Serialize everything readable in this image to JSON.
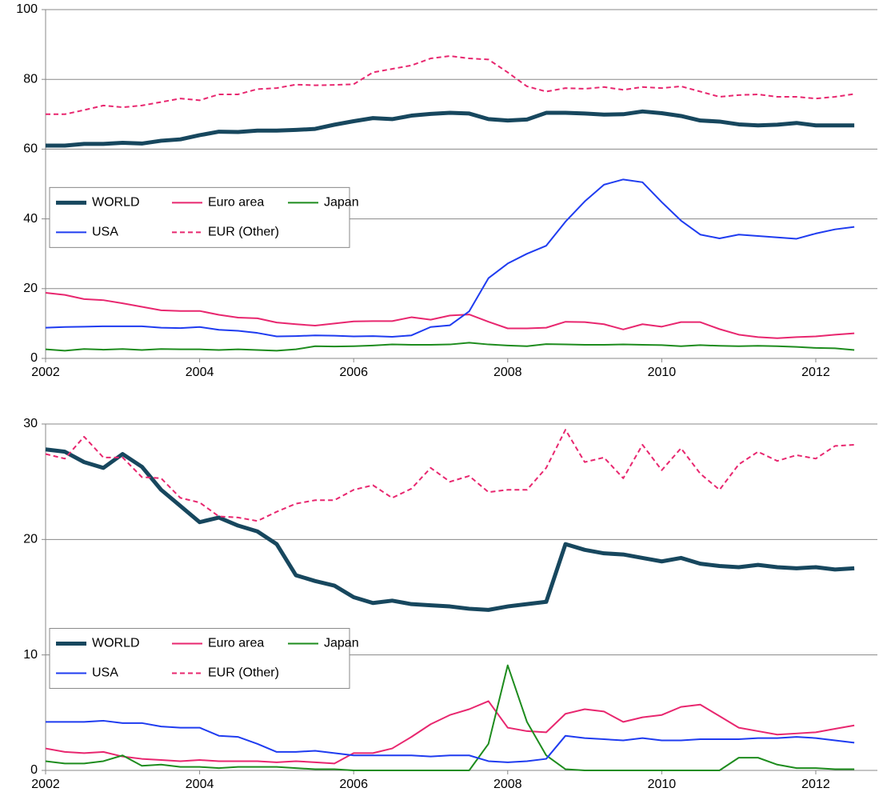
{
  "chart_data": [
    {
      "type": "line",
      "x": [
        2002,
        2002.25,
        2002.5,
        2002.75,
        2003,
        2003.25,
        2003.5,
        2003.75,
        2004,
        2004.25,
        2004.5,
        2004.75,
        2005,
        2005.25,
        2005.5,
        2005.75,
        2006,
        2006.25,
        2006.5,
        2006.75,
        2007,
        2007.25,
        2007.5,
        2007.75,
        2008,
        2008.25,
        2008.5,
        2008.75,
        2009,
        2009.25,
        2009.5,
        2009.75,
        2010,
        2010.25,
        2010.5,
        2010.75,
        2011,
        2011.25,
        2011.5,
        2011.75,
        2012,
        2012.25,
        2012.5
      ],
      "xlim": [
        2002,
        2012.8
      ],
      "xticks": [
        2002,
        2004,
        2006,
        2008,
        2010,
        2012
      ],
      "ylim": [
        0,
        100
      ],
      "yticks": [
        0,
        20,
        40,
        60,
        80,
        100
      ],
      "grid": true,
      "legend": "center-left",
      "series": [
        {
          "name": "WORLD",
          "color": "#17475e",
          "line_width": 5,
          "values": [
            61,
            61,
            61.5,
            61.5,
            61.8,
            61.6,
            62.4,
            62.8,
            64,
            65,
            64.9,
            65.3,
            65.3,
            65.5,
            65.8,
            67,
            68,
            68.9,
            68.6,
            69.6,
            70.1,
            70.4,
            70.2,
            68.6,
            68.2,
            68.5,
            70.4,
            70.4,
            70.2,
            69.9,
            70.0,
            70.8,
            70.3,
            69.5,
            68.2,
            67.9,
            67.1,
            66.8,
            67,
            67.5,
            66.8,
            66.8,
            66.8
          ]
        },
        {
          "name": "Euro area",
          "color": "#e8276f",
          "line_width": 2,
          "values": [
            18.8,
            18.2,
            17,
            16.7,
            15.8,
            14.8,
            13.8,
            13.6,
            13.6,
            12.5,
            11.7,
            11.5,
            10.3,
            9.8,
            9.4,
            10,
            10.6,
            10.7,
            10.7,
            11.8,
            11.1,
            12.3,
            12.6,
            10.5,
            8.6,
            8.6,
            8.8,
            10.5,
            10.4,
            9.8,
            8.3,
            9.8,
            9.1,
            10.4,
            10.4,
            8.4,
            6.8,
            6.1,
            5.8,
            6.1,
            6.3,
            6.8,
            7.2
          ]
        },
        {
          "name": "Japan",
          "color": "#1e8c1e",
          "line_width": 2,
          "values": [
            2.6,
            2.2,
            2.7,
            2.5,
            2.7,
            2.4,
            2.7,
            2.6,
            2.6,
            2.4,
            2.6,
            2.4,
            2.2,
            2.6,
            3.5,
            3.4,
            3.5,
            3.7,
            4,
            3.9,
            3.9,
            4,
            4.5,
            4,
            3.7,
            3.5,
            4.1,
            4,
            3.9,
            3.9,
            4,
            3.9,
            3.8,
            3.5,
            3.8,
            3.6,
            3.5,
            3.6,
            3.5,
            3.3,
            3,
            2.9,
            2.4
          ]
        },
        {
          "name": "USA",
          "color": "#1f3cf0",
          "line_width": 2,
          "values": [
            8.8,
            9,
            9.1,
            9.2,
            9.2,
            9.2,
            8.8,
            8.7,
            9,
            8.2,
            7.9,
            7.3,
            6.3,
            6.4,
            6.6,
            6.5,
            6.3,
            6.4,
            6.2,
            6.6,
            9,
            9.5,
            13.5,
            23,
            27.2,
            30,
            32.3,
            39.2,
            45,
            49.8,
            51.3,
            50.5,
            44.8,
            39.5,
            35.5,
            34.4,
            35.5,
            35.1,
            34.7,
            34.3,
            35.8,
            37,
            37.7
          ]
        },
        {
          "name": "EUR (Other)",
          "color": "#e8276f",
          "line_width": 2,
          "dashed": true,
          "values": [
            70,
            70,
            71.2,
            72.5,
            72,
            72.5,
            73.5,
            74.5,
            74,
            75.7,
            75.7,
            77.2,
            77.5,
            78.5,
            78.3,
            78.4,
            78.6,
            82,
            83,
            84,
            86,
            86.7,
            86,
            85.7,
            82,
            78,
            76.5,
            77.5,
            77.3,
            77.8,
            77,
            77.8,
            77.5,
            78,
            76.5,
            75,
            75.5,
            75.7,
            75,
            75,
            74.5,
            75,
            75.8
          ]
        }
      ]
    },
    {
      "type": "line",
      "x": [
        2002,
        2002.25,
        2002.5,
        2002.75,
        2003,
        2003.25,
        2003.5,
        2003.75,
        2004,
        2004.25,
        2004.5,
        2004.75,
        2005,
        2005.25,
        2005.5,
        2005.75,
        2006,
        2006.25,
        2006.5,
        2006.75,
        2007,
        2007.25,
        2007.5,
        2007.75,
        2008,
        2008.25,
        2008.5,
        2008.75,
        2009,
        2009.25,
        2009.5,
        2009.75,
        2010,
        2010.25,
        2010.5,
        2010.75,
        2011,
        2011.25,
        2011.5,
        2011.75,
        2012,
        2012.25,
        2012.5
      ],
      "xlim": [
        2002,
        2012.8
      ],
      "xticks": [
        2002,
        2004,
        2006,
        2008,
        2010,
        2012
      ],
      "ylim": [
        0,
        30
      ],
      "yticks": [
        0,
        10,
        20,
        30
      ],
      "grid": true,
      "legend": "lower-left",
      "series": [
        {
          "name": "WORLD",
          "color": "#17475e",
          "line_width": 5,
          "values": [
            27.8,
            27.6,
            26.7,
            26.2,
            27.4,
            26.3,
            24.3,
            22.9,
            21.5,
            21.9,
            21.2,
            20.7,
            19.6,
            16.9,
            16.4,
            16,
            15,
            14.5,
            14.7,
            14.4,
            14.3,
            14.2,
            14,
            13.9,
            14.2,
            14.4,
            14.6,
            19.6,
            19.1,
            18.8,
            18.7,
            18.4,
            18.1,
            18.4,
            17.9,
            17.7,
            17.6,
            17.8,
            17.6,
            17.5,
            17.6,
            17.4,
            17.5
          ]
        },
        {
          "name": "Euro area",
          "color": "#e8276f",
          "line_width": 2,
          "values": [
            1.9,
            1.6,
            1.5,
            1.6,
            1.2,
            1,
            0.9,
            0.8,
            0.9,
            0.8,
            0.8,
            0.8,
            0.7,
            0.8,
            0.7,
            0.6,
            1.5,
            1.5,
            1.9,
            2.9,
            4,
            4.8,
            5.3,
            6,
            3.7,
            3.4,
            3.3,
            4.9,
            5.3,
            5.1,
            4.2,
            4.6,
            4.8,
            5.5,
            5.7,
            4.7,
            3.7,
            3.4,
            3.1,
            3.2,
            3.3,
            3.6,
            3.9
          ]
        },
        {
          "name": "Japan",
          "color": "#1e8c1e",
          "line_width": 2,
          "values": [
            0.8,
            0.6,
            0.6,
            0.8,
            1.3,
            0.4,
            0.5,
            0.3,
            0.3,
            0.2,
            0.3,
            0.3,
            0.3,
            0.2,
            0.1,
            0.1,
            0,
            0,
            0,
            0,
            0,
            0,
            0,
            2.3,
            9.1,
            4.2,
            1.3,
            0.1,
            0,
            0,
            0,
            0,
            0,
            0,
            0,
            0,
            1.1,
            1.1,
            0.5,
            0.2,
            0.2,
            0.1,
            0.1
          ]
        },
        {
          "name": "USA",
          "color": "#1f3cf0",
          "line_width": 2,
          "values": [
            4.2,
            4.2,
            4.2,
            4.3,
            4.1,
            4.1,
            3.8,
            3.7,
            3.7,
            3,
            2.9,
            2.3,
            1.6,
            1.6,
            1.7,
            1.5,
            1.3,
            1.3,
            1.3,
            1.3,
            1.2,
            1.3,
            1.3,
            0.8,
            0.7,
            0.8,
            1,
            3,
            2.8,
            2.7,
            2.6,
            2.8,
            2.6,
            2.6,
            2.7,
            2.7,
            2.7,
            2.8,
            2.8,
            2.9,
            2.8,
            2.6,
            2.4
          ]
        },
        {
          "name": "EUR (Other)",
          "color": "#e8276f",
          "line_width": 2,
          "dashed": true,
          "values": [
            27.4,
            27,
            28.9,
            27.1,
            27.1,
            25.4,
            25.3,
            23.6,
            23.2,
            22,
            21.9,
            21.6,
            22.4,
            23.1,
            23.4,
            23.4,
            24.3,
            24.7,
            23.6,
            24.4,
            26.2,
            25,
            25.5,
            24.1,
            24.3,
            24.3,
            26.2,
            29.5,
            26.7,
            27.1,
            25.3,
            28.2,
            26,
            27.9,
            25.7,
            24.3,
            26.5,
            27.6,
            26.8,
            27.3,
            27,
            28.1,
            28.2
          ]
        }
      ]
    }
  ]
}
